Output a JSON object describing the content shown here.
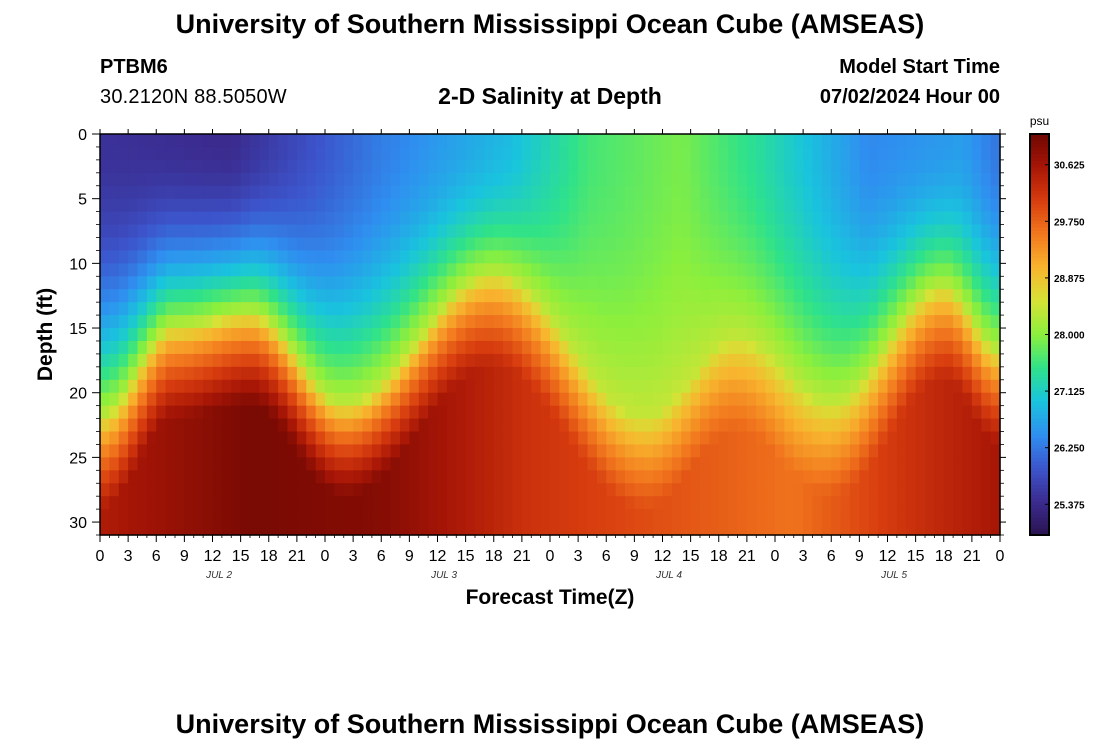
{
  "header": {
    "title": "University of Southern Mississippi Ocean Cube (AMSEAS)",
    "station": "PTBM6",
    "coords": "30.2120N  88.5050W",
    "subtitle": "2-D Salinity at Depth",
    "model_start_label": "Model Start Time",
    "model_start_value": "07/02/2024 Hour 00"
  },
  "footer": {
    "title": "University of Southern Mississippi Ocean Cube (AMSEAS)"
  },
  "chart_data": {
    "type": "heatmap",
    "title": "2-D Salinity at Depth",
    "xlabel": "Forecast Time(Z)",
    "ylabel": "Depth (ft)",
    "x_range_hours": [
      0,
      96
    ],
    "y_range_ft": [
      0,
      31
    ],
    "x_tick_labels": [
      "0",
      "3",
      "6",
      "9",
      "12",
      "15",
      "18",
      "21",
      "0",
      "3",
      "6",
      "9",
      "12",
      "15",
      "18",
      "21",
      "0",
      "3",
      "6",
      "9",
      "12",
      "15",
      "18",
      "21",
      "0",
      "3",
      "6",
      "9",
      "12",
      "15",
      "18",
      "21",
      "0"
    ],
    "day_labels": [
      "JUL 2",
      "JUL 3",
      "JUL 4",
      "JUL 5"
    ],
    "y_ticks": [
      0,
      5,
      10,
      15,
      20,
      25,
      30
    ],
    "colorbar": {
      "unit": "psu",
      "min": 24.9,
      "max": 31.1,
      "tick_values": [
        25.375,
        26.25,
        27.125,
        28.0,
        28.875,
        29.75,
        30.625
      ],
      "tick_labels": [
        "25.375",
        "26.250",
        "27.125",
        "28.000",
        "28.875",
        "29.750",
        "30.625"
      ],
      "colors": [
        "#2a1452",
        "#3b2b8f",
        "#3c55cc",
        "#2f8ff0",
        "#19c4dd",
        "#2fe28a",
        "#8cef3c",
        "#d6e236",
        "#f8b52e",
        "#f2781e",
        "#d83d0f",
        "#a81606",
        "#6e0703"
      ]
    },
    "description_of_field": [
      {
        "time_h": 0,
        "halocline_depth_ft": 22
      },
      {
        "time_h": 8,
        "halocline_depth_ft": 15
      },
      {
        "time_h": 16,
        "halocline_depth_ft": 14
      },
      {
        "time_h": 26,
        "halocline_depth_ft": 21
      },
      {
        "time_h": 42,
        "halocline_depth_ft": 11
      },
      {
        "time_h": 58,
        "halocline_depth_ft": 22
      },
      {
        "time_h": 68,
        "halocline_depth_ft": 16
      },
      {
        "time_h": 78,
        "halocline_depth_ft": 21
      },
      {
        "time_h": 90,
        "halocline_depth_ft": 12
      },
      {
        "time_h": 96,
        "halocline_depth_ft": 17
      }
    ]
  }
}
